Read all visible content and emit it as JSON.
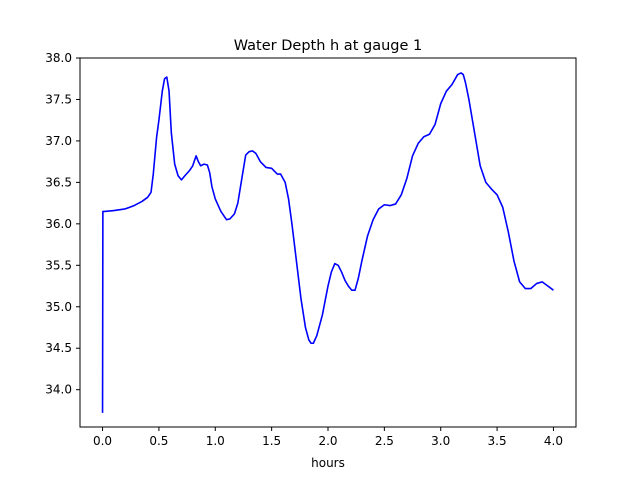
{
  "chart_data": {
    "type": "line",
    "title": "Water Depth h at gauge 1",
    "xlabel": "hours",
    "ylabel": "",
    "xlim": [
      -0.2,
      4.2
    ],
    "ylim": [
      33.55,
      38.0
    ],
    "xticks": [
      0.0,
      0.5,
      1.0,
      1.5,
      2.0,
      2.5,
      3.0,
      3.5,
      4.0
    ],
    "xtick_labels": [
      "0.0",
      "0.5",
      "1.0",
      "1.5",
      "2.0",
      "2.5",
      "3.0",
      "3.5",
      "4.0"
    ],
    "yticks": [
      34.0,
      34.5,
      35.0,
      35.5,
      36.0,
      36.5,
      37.0,
      37.5,
      38.0
    ],
    "ytick_labels": [
      "34.0",
      "34.5",
      "35.0",
      "35.5",
      "36.0",
      "36.5",
      "37.0",
      "37.5",
      "38.0"
    ],
    "grid": false,
    "legend": "none",
    "series": [
      {
        "color": "#0000ff",
        "x": [
          0.0,
          0.003,
          0.02,
          0.1,
          0.2,
          0.28,
          0.35,
          0.4,
          0.43,
          0.45,
          0.48,
          0.5,
          0.53,
          0.55,
          0.57,
          0.59,
          0.61,
          0.64,
          0.67,
          0.7,
          0.73,
          0.77,
          0.8,
          0.83,
          0.85,
          0.87,
          0.9,
          0.93,
          0.95,
          0.97,
          1.0,
          1.05,
          1.1,
          1.13,
          1.17,
          1.2,
          1.23,
          1.27,
          1.3,
          1.33,
          1.36,
          1.4,
          1.45,
          1.5,
          1.55,
          1.58,
          1.62,
          1.65,
          1.68,
          1.72,
          1.76,
          1.8,
          1.83,
          1.85,
          1.87,
          1.9,
          1.95,
          2.0,
          2.03,
          2.06,
          2.09,
          2.12,
          2.15,
          2.18,
          2.21,
          2.24,
          2.27,
          2.3,
          2.35,
          2.4,
          2.45,
          2.5,
          2.55,
          2.6,
          2.65,
          2.7,
          2.75,
          2.8,
          2.85,
          2.9,
          2.95,
          3.0,
          3.05,
          3.1,
          3.15,
          3.18,
          3.2,
          3.22,
          3.25,
          3.3,
          3.35,
          3.4,
          3.45,
          3.5,
          3.55,
          3.6,
          3.65,
          3.7,
          3.75,
          3.8,
          3.85,
          3.9,
          3.95,
          4.0
        ],
        "y": [
          33.72,
          36.15,
          36.15,
          36.16,
          36.18,
          36.22,
          36.27,
          36.32,
          36.38,
          36.6,
          37.05,
          37.25,
          37.6,
          37.75,
          37.77,
          37.6,
          37.1,
          36.72,
          36.58,
          36.53,
          36.58,
          36.64,
          36.7,
          36.82,
          36.75,
          36.7,
          36.72,
          36.71,
          36.62,
          36.45,
          36.3,
          36.15,
          36.05,
          36.06,
          36.12,
          36.25,
          36.5,
          36.83,
          36.87,
          36.88,
          36.85,
          36.75,
          36.68,
          36.67,
          36.6,
          36.6,
          36.5,
          36.3,
          36.0,
          35.55,
          35.1,
          34.75,
          34.6,
          34.56,
          34.56,
          34.65,
          34.9,
          35.25,
          35.42,
          35.52,
          35.5,
          35.42,
          35.32,
          35.25,
          35.2,
          35.2,
          35.35,
          35.55,
          35.85,
          36.05,
          36.18,
          36.23,
          36.22,
          36.24,
          36.35,
          36.55,
          36.82,
          36.97,
          37.05,
          37.08,
          37.2,
          37.45,
          37.6,
          37.68,
          37.8,
          37.82,
          37.8,
          37.7,
          37.5,
          37.1,
          36.7,
          36.5,
          36.42,
          36.35,
          36.2,
          35.9,
          35.55,
          35.3,
          35.22,
          35.22,
          35.28,
          35.3,
          35.25,
          35.2
        ]
      }
    ]
  }
}
